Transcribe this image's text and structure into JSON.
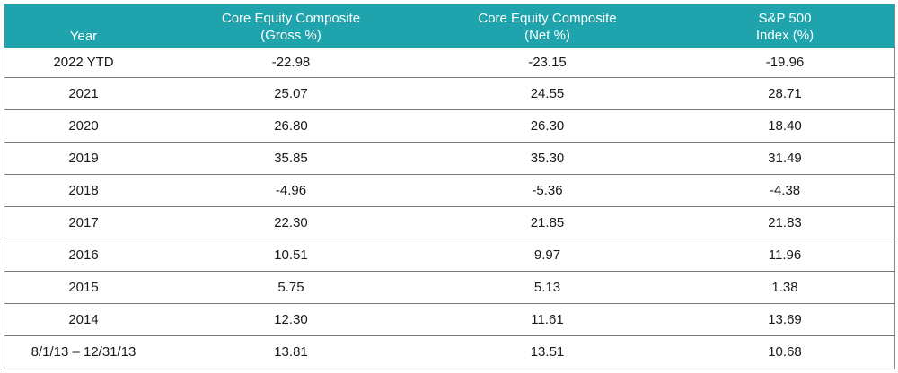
{
  "table": {
    "headers": {
      "year": "Year",
      "gross": [
        "Core Equity Composite",
        "(Gross %)"
      ],
      "net": [
        "Core Equity Composite",
        "(Net %)"
      ],
      "spx": [
        "S&P 500",
        "Index (%)"
      ]
    },
    "rows": [
      {
        "year": "2022 YTD",
        "gross": "-22.98",
        "net": "-23.15",
        "spx": "-19.96"
      },
      {
        "year": "2021",
        "gross": "25.07",
        "net": "24.55",
        "spx": "28.71"
      },
      {
        "year": "2020",
        "gross": "26.80",
        "net": "26.30",
        "spx": "18.40"
      },
      {
        "year": "2019",
        "gross": "35.85",
        "net": "35.30",
        "spx": "31.49"
      },
      {
        "year": "2018",
        "gross": "-4.96",
        "net": "-5.36",
        "spx": "-4.38"
      },
      {
        "year": "2017",
        "gross": "22.30",
        "net": "21.85",
        "spx": "21.83"
      },
      {
        "year": "2016",
        "gross": "10.51",
        "net": "9.97",
        "spx": "11.96"
      },
      {
        "year": "2015",
        "gross": "5.75",
        "net": "5.13",
        "spx": "1.38"
      },
      {
        "year": "2014",
        "gross": "12.30",
        "net": "11.61",
        "spx": "13.69"
      },
      {
        "year": "8/1/13 – 12/31/13",
        "gross": "13.81",
        "net": "13.51",
        "spx": "10.68"
      }
    ]
  },
  "colors": {
    "header_bg": "#1fa3ad",
    "header_text": "#ffffff",
    "row_divider": "#7a7a7a"
  }
}
